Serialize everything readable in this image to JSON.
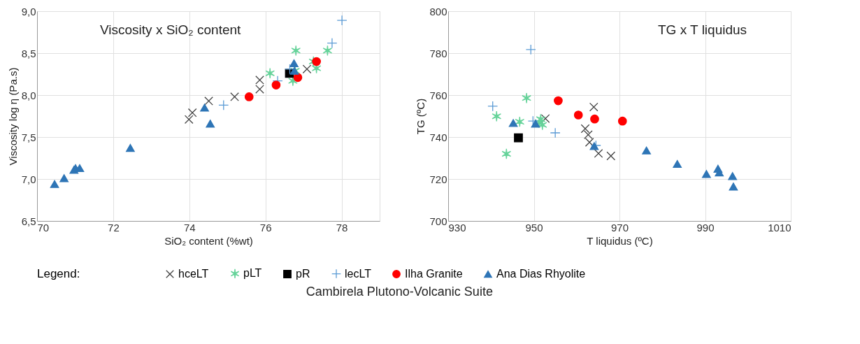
{
  "chart_data": [
    {
      "type": "scatter",
      "title": "Viscosity x SiO₂ content",
      "xlabel": "SiO₂  content (%wt)",
      "ylabel": "Viscosity log η (Pa.s)",
      "xlim": [
        70,
        79
      ],
      "xticks": [
        70,
        72,
        74,
        76,
        78
      ],
      "ylim": [
        6.5,
        9.0
      ],
      "yticks": [
        {
          "value": 6.5,
          "label": "6,5"
        },
        {
          "value": 7.0,
          "label": "7,0"
        },
        {
          "value": 7.5,
          "label": "7,5"
        },
        {
          "value": 8.0,
          "label": "8,0"
        },
        {
          "value": 8.5,
          "label": "8,5"
        },
        {
          "value": 9.0,
          "label": "9,0"
        }
      ],
      "grid": true,
      "legend": "bottom",
      "legend_title": "Legend:",
      "annotations": [
        "Cambirela Plutono-Volcanic Suite"
      ],
      "series": [
        {
          "name": "hceLT",
          "color": "#404040",
          "marker": "cross",
          "x": [
            73.99,
            74.08,
            74.51,
            75.19,
            75.85,
            75.85,
            77.09
          ],
          "values": [
            7.71,
            7.79,
            7.93,
            7.98,
            8.07,
            8.18,
            8.31
          ]
        },
        {
          "name": "pLT",
          "color": "#66d39a",
          "marker": "cross",
          "x": [
            76.12,
            76.8,
            76.72,
            76.78,
            77.26,
            77.34,
            77.63
          ],
          "values": [
            8.26,
            8.53,
            8.17,
            8.29,
            8.4,
            8.32,
            8.53
          ]
        },
        {
          "name": "pR",
          "color": "#000000",
          "marker": "square",
          "x": [
            76.63
          ],
          "values": [
            8.26
          ]
        },
        {
          "name": "lecLT",
          "color": "#5b9bd5",
          "marker": "plus",
          "x": [
            74.9,
            76.32,
            76.64,
            77.75,
            78.01
          ],
          "values": [
            7.88,
            8.17,
            8.31,
            8.62,
            8.89
          ]
        },
        {
          "name": "Ilha Granite",
          "color": "#ff0000",
          "marker": "circle",
          "x": [
            75.57,
            76.28,
            76.85,
            77.34
          ],
          "values": [
            7.98,
            8.12,
            8.21,
            8.4
          ]
        },
        {
          "name": "Ana Dias Rhyolite",
          "color": "#2e75b6",
          "marker": "triangle",
          "x": [
            70.46,
            70.71,
            70.97,
            71.01,
            71.12,
            72.45,
            74.4,
            74.55,
            76.75,
            76.76
          ],
          "values": [
            6.94,
            7.01,
            7.11,
            7.13,
            7.13,
            7.37,
            7.85,
            7.66,
            8.38,
            8.29
          ]
        }
      ]
    },
    {
      "type": "scatter",
      "title": "TG x T liquidus",
      "xlabel": "T liquidus (ºC)",
      "ylabel": "TG (ºC)",
      "xlim": [
        930,
        1010
      ],
      "xticks": [
        930,
        950,
        970,
        990,
        {
          "value": 1010,
          "label": "1010"
        }
      ],
      "ylim": [
        700,
        800
      ],
      "yticks": [
        700,
        720,
        740,
        760,
        780,
        800
      ],
      "grid": true,
      "series": [
        {
          "name": "hceLT",
          "color": "#404040",
          "marker": "cross",
          "x": [
            952.7,
            964.0,
            962.0,
            962.7,
            963.0,
            965.1,
            968.0
          ],
          "values": [
            748.8,
            754.3,
            744.0,
            741.1,
            737.5,
            732.2,
            731.0
          ]
        },
        {
          "name": "pLT",
          "color": "#66d39a",
          "marker": "cross",
          "x": [
            948.3,
            941.3,
            946.7,
            943.6,
            951.6,
            952.0,
            951.3
          ],
          "values": [
            758.6,
            749.9,
            747.3,
            732.0,
            748.5,
            745.8,
            747.0
          ]
        },
        {
          "name": "pR",
          "color": "#000000",
          "marker": "square",
          "x": [
            946.4
          ],
          "values": [
            739.6
          ]
        },
        {
          "name": "lecLT",
          "color": "#5b9bd5",
          "marker": "plus",
          "x": [
            940.4,
            949.3,
            949.8,
            955.0,
            964.5
          ],
          "values": [
            754.7,
            781.7,
            747.6,
            742.0,
            736.0
          ]
        },
        {
          "name": "Ilha Granite",
          "color": "#ff0000",
          "marker": "circle",
          "x": [
            955.7,
            960.4,
            964.2,
            970.7
          ],
          "values": [
            757.3,
            750.5,
            748.6,
            747.6
          ]
        },
        {
          "name": "Ana Dias Rhyolite",
          "color": "#2e75b6",
          "marker": "triangle",
          "x": [
            945.2,
            950.4,
            964.1,
            976.3,
            983.5,
            990.3,
            993.0,
            993.3,
            996.4,
            996.6
          ],
          "values": [
            746.7,
            746.4,
            735.7,
            733.6,
            727.2,
            722.4,
            724.9,
            723.1,
            721.4,
            716.4
          ]
        }
      ]
    }
  ]
}
